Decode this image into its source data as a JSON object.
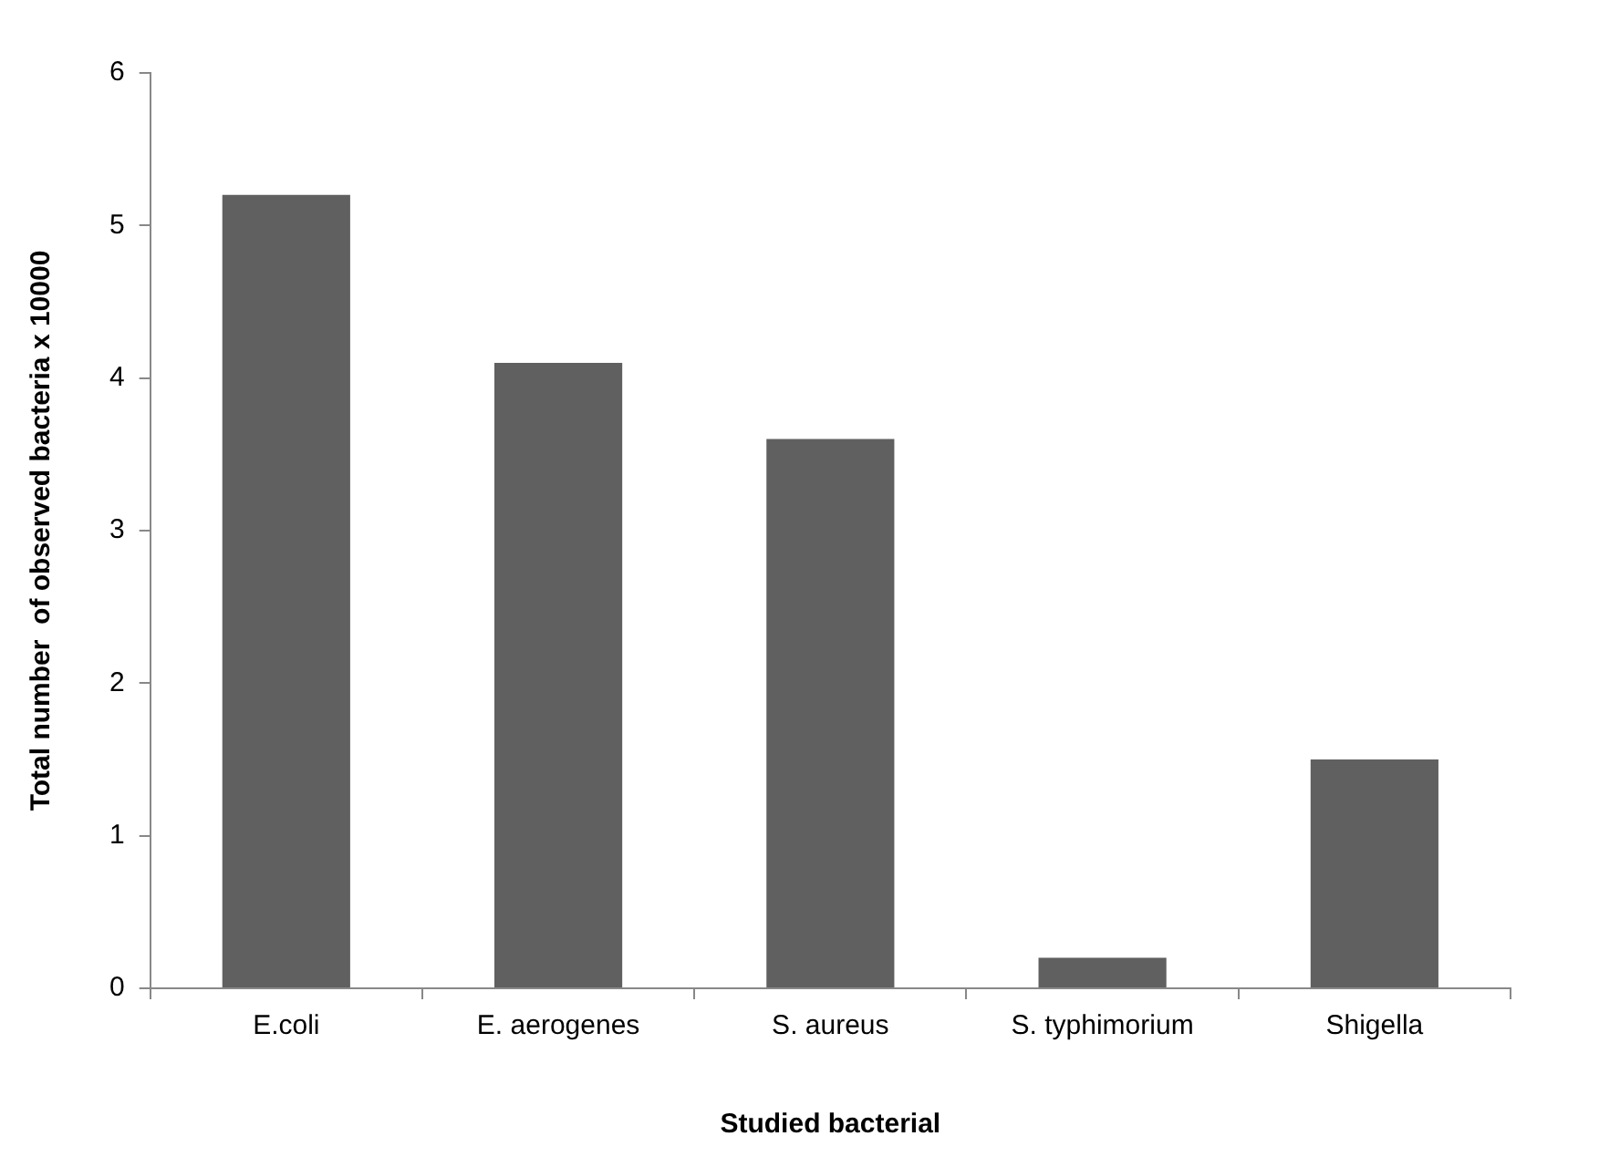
{
  "chart_data": {
    "type": "bar",
    "xlabel": "Studied bacterial",
    "ylabel": "Total number  of observed bacteria x 10000",
    "categories": [
      "E.coli",
      "E. aerogenes",
      "S. aureus",
      "S. typhimorium",
      "Shigella"
    ],
    "values": [
      5.2,
      4.1,
      3.6,
      0.2,
      1.5
    ],
    "color": "#606060",
    "ylim": [
      0,
      6
    ],
    "yticks": [
      0,
      1,
      2,
      3,
      4,
      5,
      6
    ],
    "grid": false,
    "legend": false
  }
}
